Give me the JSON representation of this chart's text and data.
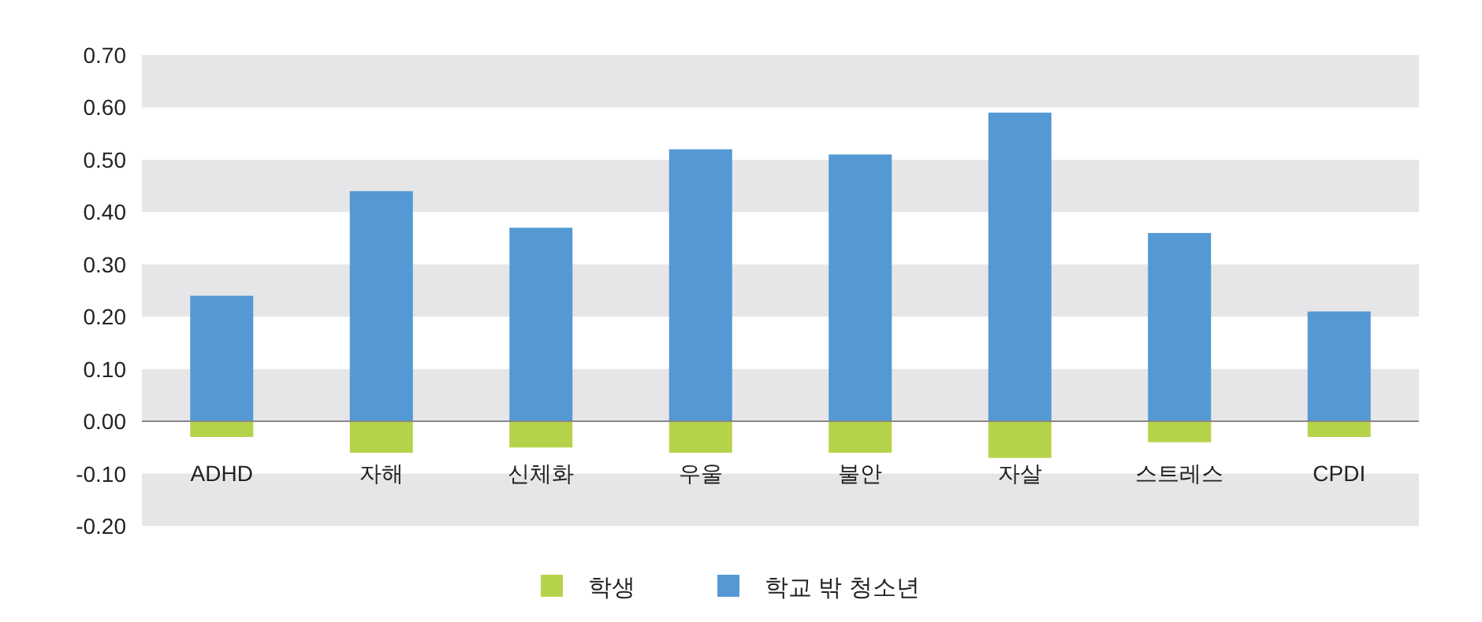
{
  "chart_data": {
    "type": "bar",
    "stacked": true,
    "categories": [
      "ADHD",
      "자해",
      "신체화",
      "우울",
      "불안",
      "자살",
      "스트레스",
      "CPDI"
    ],
    "series": [
      {
        "name": "학생",
        "color": "#b5d34a",
        "values": [
          -0.03,
          -0.06,
          -0.05,
          -0.06,
          -0.06,
          -0.07,
          -0.04,
          -0.03
        ]
      },
      {
        "name": "학교 밖 청소년",
        "color": "#5499d3",
        "values": [
          0.24,
          0.44,
          0.37,
          0.52,
          0.51,
          0.59,
          0.36,
          0.21
        ]
      }
    ],
    "ylim": [
      -0.2,
      0.7
    ],
    "yticks": [
      {
        "value": -0.2,
        "label": "-0.20"
      },
      {
        "value": -0.1,
        "label": "-0.10"
      },
      {
        "value": 0,
        "label": "0.00"
      },
      {
        "value": 0.1,
        "label": "0.10"
      },
      {
        "value": 0.2,
        "label": "0.20"
      },
      {
        "value": 0.3,
        "label": "0.30"
      },
      {
        "value": 0.4,
        "label": "0.40"
      },
      {
        "value": 0.5,
        "label": "0.50"
      },
      {
        "value": 0.6,
        "label": "0.60"
      },
      {
        "value": 0.7,
        "label": "0.70"
      }
    ],
    "bands": [
      {
        "axis": "y",
        "from": 0.6,
        "to": 0.7,
        "color": "#e6e6e8"
      },
      {
        "axis": "y",
        "from": 0.4,
        "to": 0.5,
        "color": "#e6e6e8"
      },
      {
        "axis": "y",
        "from": 0.2,
        "to": 0.3,
        "color": "#e6e6e8"
      },
      {
        "axis": "y",
        "from": 0,
        "to": 0.1,
        "color": "#e6e6e8"
      },
      {
        "axis": "y",
        "from": -0.2,
        "to": -0.1,
        "color": "#e6e6e8"
      }
    ],
    "legend": "bottom"
  }
}
